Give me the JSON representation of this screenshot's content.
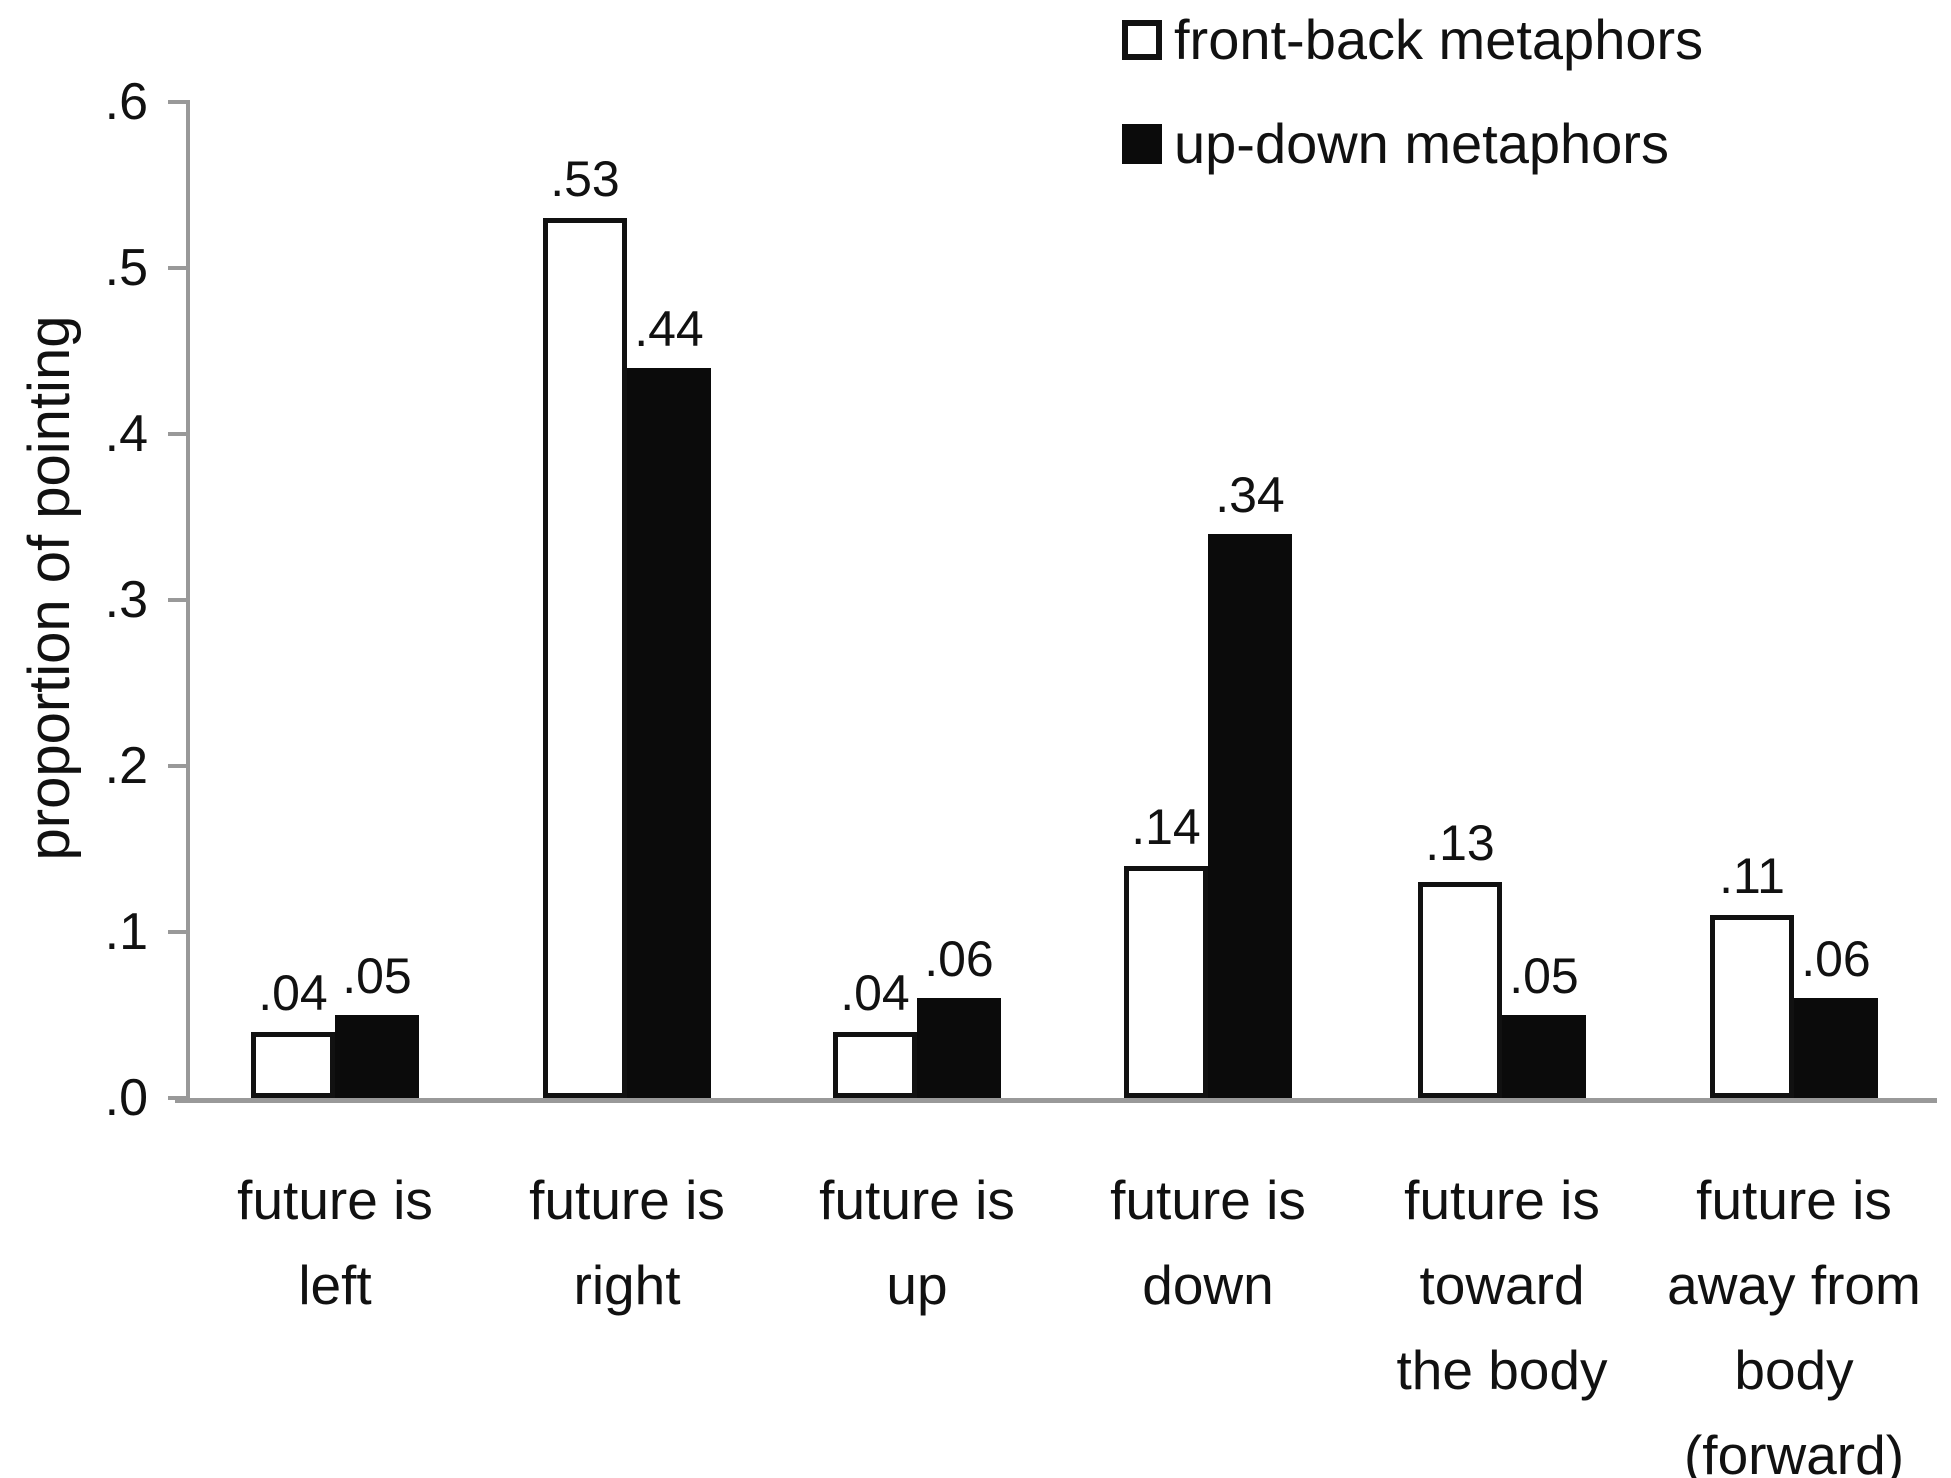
{
  "figure": {
    "background": "#ffffff",
    "axis_color": "#999999",
    "bar_outline_color": "#111111",
    "bar_fill_open": "#ffffff",
    "bar_fill_filled": "#0b0b0b",
    "text_color": "#111111"
  },
  "chart_data": {
    "type": "bar",
    "title": "",
    "xlabel": "",
    "ylabel": "proportion of pointing",
    "ylim": [
      0,
      0.6
    ],
    "grid": false,
    "legend_position": "top-right",
    "yticks": [
      {
        "label": ".0",
        "value": 0.0
      },
      {
        "label": ".1",
        "value": 0.1
      },
      {
        "label": ".2",
        "value": 0.2
      },
      {
        "label": ".3",
        "value": 0.3
      },
      {
        "label": ".4",
        "value": 0.4
      },
      {
        "label": ".5",
        "value": 0.5
      },
      {
        "label": ".6",
        "value": 0.6
      }
    ],
    "categories": [
      {
        "id": "future-is-left",
        "lines": [
          "future is",
          "left"
        ]
      },
      {
        "id": "future-is-right",
        "lines": [
          "future is",
          "right"
        ]
      },
      {
        "id": "future-is-up",
        "lines": [
          "future is",
          "up"
        ]
      },
      {
        "id": "future-is-down",
        "lines": [
          "future is",
          "down"
        ]
      },
      {
        "id": "future-is-toward",
        "lines": [
          "future is",
          "toward",
          "the body"
        ]
      },
      {
        "id": "future-is-away",
        "lines": [
          "future is",
          "away from",
          "body",
          "(forward)"
        ]
      }
    ],
    "series": [
      {
        "id": "front-back",
        "name": "front-back metaphors",
        "style": "open",
        "values": [
          0.04,
          0.53,
          0.04,
          0.14,
          0.13,
          0.11
        ],
        "labels": [
          ".04",
          ".53",
          ".04",
          ".14",
          ".13",
          ".11"
        ]
      },
      {
        "id": "up-down",
        "name": "up-down metaphors",
        "style": "filled",
        "values": [
          0.05,
          0.44,
          0.06,
          0.34,
          0.05,
          0.06
        ],
        "labels": [
          ".05",
          ".44",
          ".06",
          ".34",
          ".05",
          ".06"
        ]
      }
    ]
  }
}
